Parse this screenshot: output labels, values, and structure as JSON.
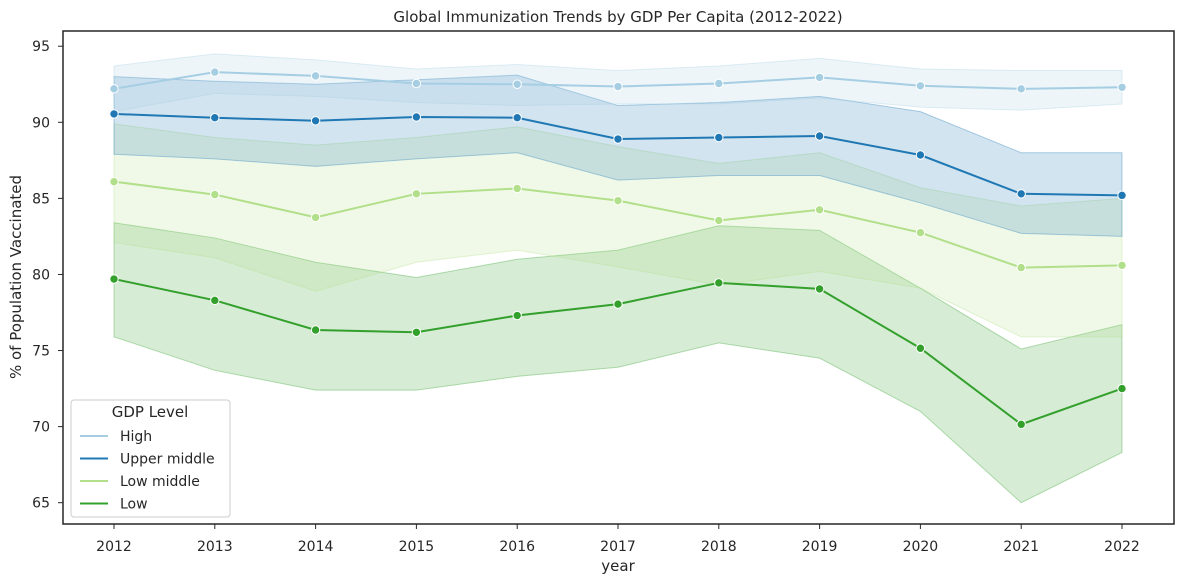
{
  "chart_data": {
    "type": "line",
    "title": "Global Immunization Trends by GDP Per Capita (2012-2022)",
    "xlabel": "year",
    "ylabel": "% of Population Vaccinated",
    "x": [
      2012,
      2013,
      2014,
      2015,
      2016,
      2017,
      2018,
      2019,
      2020,
      2021,
      2022
    ],
    "xticks": [
      "2012",
      "2013",
      "2014",
      "2015",
      "2016",
      "2017",
      "2018",
      "2019",
      "2020",
      "2021",
      "2022"
    ],
    "yticks": [
      65,
      70,
      75,
      80,
      85,
      90,
      95
    ],
    "ytick_labels": [
      "65",
      "70",
      "75",
      "80",
      "85",
      "90",
      "95"
    ],
    "ylim": [
      63.6,
      96.0
    ],
    "grid": false,
    "legend": {
      "title": "GDP Level",
      "position": "lower-left"
    },
    "series": [
      {
        "name": "Low",
        "color": "#33a02c",
        "values": [
          79.7,
          78.3,
          76.35,
          76.2,
          77.3,
          78.05,
          79.45,
          79.05,
          75.15,
          70.15,
          72.5
        ],
        "ci_upper": [
          83.4,
          82.4,
          80.8,
          79.8,
          81.0,
          81.6,
          83.2,
          82.9,
          79.1,
          75.1,
          76.7
        ],
        "ci_lower": [
          75.9,
          73.7,
          72.4,
          72.4,
          73.3,
          73.9,
          75.5,
          74.5,
          71.0,
          65.0,
          68.3
        ]
      },
      {
        "name": "Low middle",
        "color": "#b2df8a",
        "values": [
          86.1,
          85.25,
          83.75,
          85.3,
          85.65,
          84.85,
          83.55,
          84.25,
          82.75,
          80.45,
          80.6
        ],
        "ci_upper": [
          89.9,
          89.0,
          88.5,
          89.0,
          89.7,
          88.4,
          87.3,
          88.0,
          85.7,
          84.5,
          85.0
        ],
        "ci_lower": [
          82.1,
          81.1,
          78.9,
          80.8,
          81.6,
          80.5,
          79.3,
          80.2,
          79.1,
          75.9,
          75.9
        ]
      },
      {
        "name": "Upper middle",
        "color": "#1f78b4",
        "values": [
          90.55,
          90.3,
          90.1,
          90.35,
          90.3,
          88.9,
          89.0,
          89.1,
          87.85,
          85.3,
          85.2
        ],
        "ci_upper": [
          93.0,
          92.7,
          92.5,
          92.8,
          93.1,
          91.1,
          91.3,
          91.7,
          90.7,
          88.0,
          88.0
        ],
        "ci_lower": [
          87.9,
          87.6,
          87.1,
          87.6,
          88.0,
          86.2,
          86.5,
          86.5,
          84.7,
          82.7,
          82.5
        ]
      },
      {
        "name": "High",
        "color": "#a6cee3",
        "values": [
          92.2,
          93.3,
          93.05,
          92.55,
          92.5,
          92.35,
          92.55,
          92.95,
          92.4,
          92.2,
          92.3
        ],
        "ci_upper": [
          93.7,
          94.5,
          94.1,
          93.5,
          93.8,
          93.4,
          93.7,
          94.2,
          93.5,
          93.4,
          93.4
        ],
        "ci_lower": [
          90.7,
          91.9,
          91.7,
          91.3,
          91.1,
          91.2,
          91.2,
          91.6,
          91.0,
          90.8,
          91.2
        ]
      }
    ]
  }
}
